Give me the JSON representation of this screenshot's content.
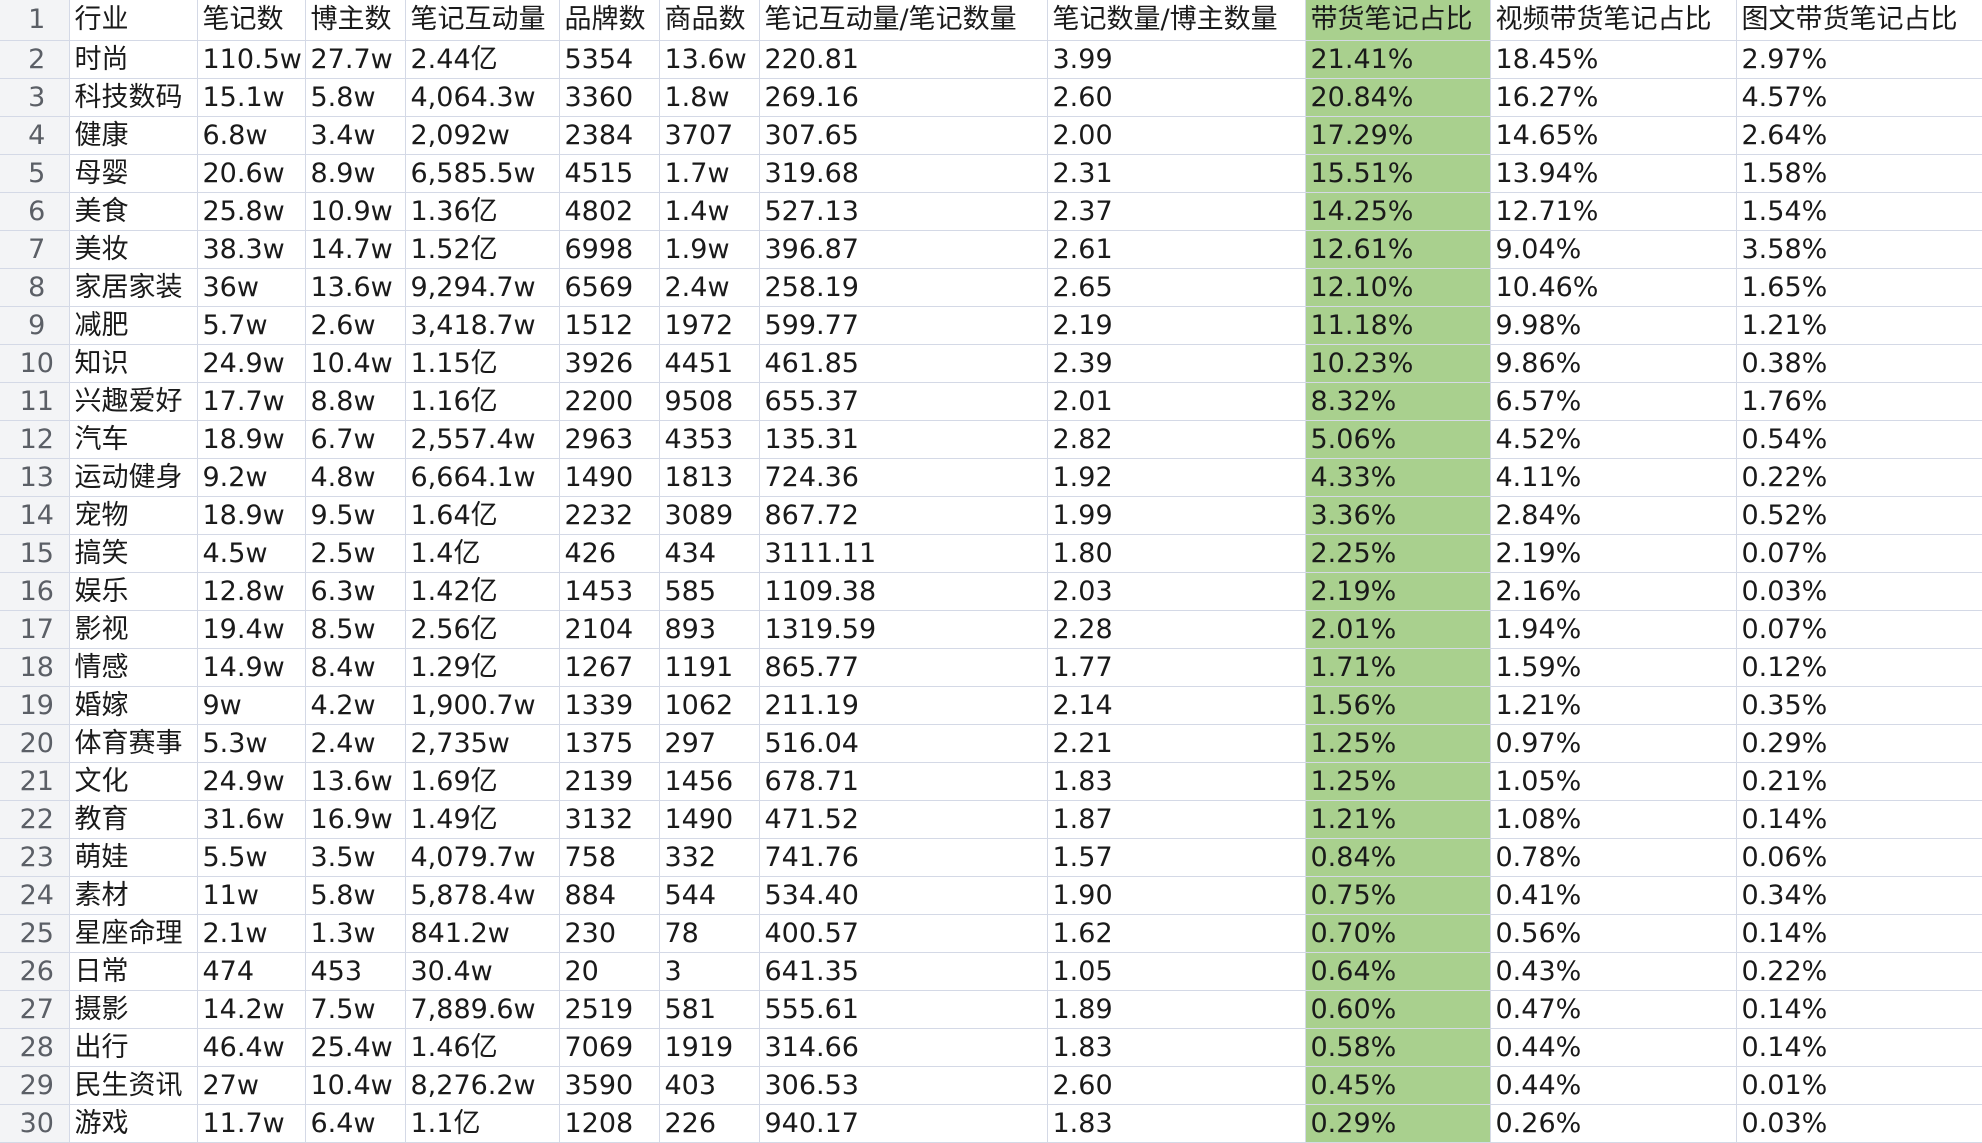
{
  "sheet": {
    "columns": [
      "行业",
      "笔记数",
      "博主数",
      "笔记互动量",
      "品牌数",
      "商品数",
      "笔记互动量/笔记数量",
      "笔记数量/博主数量",
      "带货笔记占比",
      "视频带货笔记占比",
      "图文带货笔记占比"
    ],
    "highlight_color": "#a9d08e",
    "highlight_column_index": 8,
    "rows": [
      [
        "时尚",
        "110.5w",
        "27.7w",
        "2.44亿",
        "5354",
        "13.6w",
        "220.81",
        "3.99",
        "21.41%",
        "18.45%",
        "2.97%"
      ],
      [
        "科技数码",
        "15.1w",
        "5.8w",
        "4,064.3w",
        "3360",
        "1.8w",
        "269.16",
        "2.60",
        "20.84%",
        "16.27%",
        "4.57%"
      ],
      [
        "健康",
        "6.8w",
        "3.4w",
        "2,092w",
        "2384",
        "3707",
        "307.65",
        "2.00",
        "17.29%",
        "14.65%",
        "2.64%"
      ],
      [
        "母婴",
        "20.6w",
        "8.9w",
        "6,585.5w",
        "4515",
        "1.7w",
        "319.68",
        "2.31",
        "15.51%",
        "13.94%",
        "1.58%"
      ],
      [
        "美食",
        "25.8w",
        "10.9w",
        "1.36亿",
        "4802",
        "1.4w",
        "527.13",
        "2.37",
        "14.25%",
        "12.71%",
        "1.54%"
      ],
      [
        "美妆",
        "38.3w",
        "14.7w",
        "1.52亿",
        "6998",
        "1.9w",
        "396.87",
        "2.61",
        "12.61%",
        "9.04%",
        "3.58%"
      ],
      [
        "家居家装",
        "36w",
        "13.6w",
        "9,294.7w",
        "6569",
        "2.4w",
        "258.19",
        "2.65",
        "12.10%",
        "10.46%",
        "1.65%"
      ],
      [
        "减肥",
        "5.7w",
        "2.6w",
        "3,418.7w",
        "1512",
        "1972",
        "599.77",
        "2.19",
        "11.18%",
        "9.98%",
        "1.21%"
      ],
      [
        "知识",
        "24.9w",
        "10.4w",
        "1.15亿",
        "3926",
        "4451",
        "461.85",
        "2.39",
        "10.23%",
        "9.86%",
        "0.38%"
      ],
      [
        "兴趣爱好",
        "17.7w",
        "8.8w",
        "1.16亿",
        "2200",
        "9508",
        "655.37",
        "2.01",
        "8.32%",
        "6.57%",
        "1.76%"
      ],
      [
        "汽车",
        "18.9w",
        "6.7w",
        "2,557.4w",
        "2963",
        "4353",
        "135.31",
        "2.82",
        "5.06%",
        "4.52%",
        "0.54%"
      ],
      [
        "运动健身",
        "9.2w",
        "4.8w",
        "6,664.1w",
        "1490",
        "1813",
        "724.36",
        "1.92",
        "4.33%",
        "4.11%",
        "0.22%"
      ],
      [
        "宠物",
        "18.9w",
        "9.5w",
        "1.64亿",
        "2232",
        "3089",
        "867.72",
        "1.99",
        "3.36%",
        "2.84%",
        "0.52%"
      ],
      [
        "搞笑",
        "4.5w",
        "2.5w",
        "1.4亿",
        "426",
        "434",
        "3111.11",
        "1.80",
        "2.25%",
        "2.19%",
        "0.07%"
      ],
      [
        "娱乐",
        "12.8w",
        "6.3w",
        "1.42亿",
        "1453",
        "585",
        "1109.38",
        "2.03",
        "2.19%",
        "2.16%",
        "0.03%"
      ],
      [
        "影视",
        "19.4w",
        "8.5w",
        "2.56亿",
        "2104",
        "893",
        "1319.59",
        "2.28",
        "2.01%",
        "1.94%",
        "0.07%"
      ],
      [
        "情感",
        "14.9w",
        "8.4w",
        "1.29亿",
        "1267",
        "1191",
        "865.77",
        "1.77",
        "1.71%",
        "1.59%",
        "0.12%"
      ],
      [
        "婚嫁",
        "9w",
        "4.2w",
        "1,900.7w",
        "1339",
        "1062",
        "211.19",
        "2.14",
        "1.56%",
        "1.21%",
        "0.35%"
      ],
      [
        "体育赛事",
        "5.3w",
        "2.4w",
        "2,735w",
        "1375",
        "297",
        "516.04",
        "2.21",
        "1.25%",
        "0.97%",
        "0.29%"
      ],
      [
        "文化",
        "24.9w",
        "13.6w",
        "1.69亿",
        "2139",
        "1456",
        "678.71",
        "1.83",
        "1.25%",
        "1.05%",
        "0.21%"
      ],
      [
        "教育",
        "31.6w",
        "16.9w",
        "1.49亿",
        "3132",
        "1490",
        "471.52",
        "1.87",
        "1.21%",
        "1.08%",
        "0.14%"
      ],
      [
        "萌娃",
        "5.5w",
        "3.5w",
        "4,079.7w",
        "758",
        "332",
        "741.76",
        "1.57",
        "0.84%",
        "0.78%",
        "0.06%"
      ],
      [
        "素材",
        "11w",
        "5.8w",
        "5,878.4w",
        "884",
        "544",
        "534.40",
        "1.90",
        "0.75%",
        "0.41%",
        "0.34%"
      ],
      [
        "星座命理",
        "2.1w",
        "1.3w",
        "841.2w",
        "230",
        "78",
        "400.57",
        "1.62",
        "0.70%",
        "0.56%",
        "0.14%"
      ],
      [
        "日常",
        "474",
        "453",
        "30.4w",
        "20",
        "3",
        "641.35",
        "1.05",
        "0.64%",
        "0.43%",
        "0.22%"
      ],
      [
        "摄影",
        "14.2w",
        "7.5w",
        "7,889.6w",
        "2519",
        "581",
        "555.61",
        "1.89",
        "0.60%",
        "0.47%",
        "0.14%"
      ],
      [
        "出行",
        "46.4w",
        "25.4w",
        "1.46亿",
        "7069",
        "1919",
        "314.66",
        "1.83",
        "0.58%",
        "0.44%",
        "0.14%"
      ],
      [
        "民生资讯",
        "27w",
        "10.4w",
        "8,276.2w",
        "3590",
        "403",
        "306.53",
        "2.60",
        "0.45%",
        "0.44%",
        "0.01%"
      ],
      [
        "游戏",
        "11.7w",
        "6.4w",
        "1.1亿",
        "1208",
        "226",
        "940.17",
        "1.83",
        "0.29%",
        "0.26%",
        "0.03%"
      ]
    ]
  }
}
